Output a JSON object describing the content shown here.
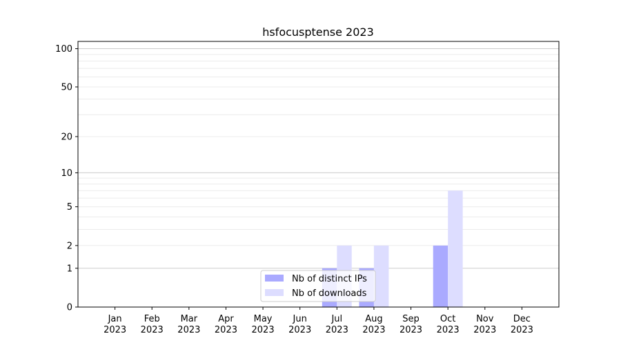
{
  "chart_data": {
    "type": "bar",
    "title": "hsfocusptense 2023",
    "xlabel": "",
    "ylabel": "",
    "categories": [
      "Jan\n2023",
      "Feb\n2023",
      "Mar\n2023",
      "Apr\n2023",
      "May\n2023",
      "Jun\n2023",
      "Jul\n2023",
      "Aug\n2023",
      "Sep\n2023",
      "Oct\n2023",
      "Nov\n2023",
      "Dec\n2023"
    ],
    "series": [
      {
        "name": "Nb of distinct IPs",
        "color": "#aaaaff",
        "values": [
          0,
          0,
          0,
          0,
          0,
          0,
          1,
          1,
          0,
          2,
          0,
          0
        ]
      },
      {
        "name": "Nb of downloads",
        "color": "#ddddff",
        "values": [
          0,
          0,
          0,
          0,
          0,
          0,
          2,
          2,
          0,
          7,
          0,
          0
        ]
      }
    ],
    "y_scale": "log(1+y)",
    "yticks": [
      0,
      1,
      2,
      5,
      10,
      20,
      50,
      100
    ],
    "ylim": [
      0,
      114
    ],
    "grid": true,
    "legend_placement": "lower-center"
  }
}
